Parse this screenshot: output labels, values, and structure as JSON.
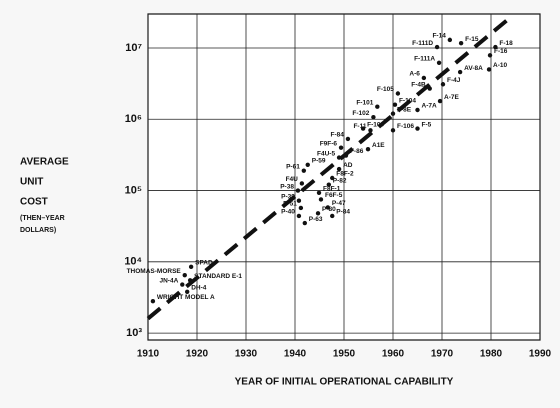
{
  "chart_data": {
    "type": "scatter",
    "log_y": true,
    "grid": true,
    "y_label_lines": [
      "AVERAGE",
      "UNIT",
      "COST",
      "(THEN–YEAR",
      "DOLLARS)"
    ],
    "x_label": "YEAR OF INITIAL OPERATIONAL CAPABILITY",
    "xlim": [
      1910,
      1990
    ],
    "xticks": [
      1910,
      1920,
      1930,
      1940,
      1950,
      1960,
      1970,
      1980,
      1990
    ],
    "ylim": [
      800,
      30000000
    ],
    "yticks": [
      {
        "value": 1000,
        "label": "10³"
      },
      {
        "value": 10000,
        "label": "10⁴"
      },
      {
        "value": 100000,
        "label": "10⁵"
      },
      {
        "value": 1000000,
        "label": "10⁶"
      },
      {
        "value": 10000000,
        "label": "10⁷"
      }
    ],
    "series": [
      {
        "color": "#111111",
        "labels": [
          "WRIGHT MODEL A",
          "DH-4",
          "JN-4A",
          "STANDARD E-1",
          "THOMAS-MORSE",
          "SPAD",
          "P-40",
          "P-63",
          "P-51",
          "P-39",
          "P-38",
          "F4U",
          "P-61",
          "P-59",
          "P-80",
          "P-84",
          "P-47",
          "F6F-5",
          "F8F-1",
          "P-82",
          "F8F-2",
          "AD",
          "F4U-5",
          "F9F-6",
          "F-86",
          "F-84",
          "A1E",
          "F-11",
          "F-100",
          "F-102",
          "F-101",
          "F-106",
          "F-8E",
          "F-104",
          "F-105",
          "F-5",
          "A-7A",
          "A-6",
          "F-4B",
          "A-7E",
          "F-4J",
          "F-111A",
          "F-111D",
          "F-14",
          "F-15",
          "AV-8A",
          "A-10",
          "F-16",
          "F-18"
        ],
        "x": [
          1911,
          1918,
          1917,
          1918.6,
          1917.5,
          1918.8,
          1940.8,
          1942,
          1941.2,
          1940.8,
          1940.6,
          1941.4,
          1941.8,
          1942.6,
          1944.7,
          1947.6,
          1946.7,
          1945.3,
          1944.9,
          1946.9,
          1947.6,
          1949,
          1949,
          1949.4,
          1950.4,
          1950.8,
          1954.9,
          1955.4,
          1953.9,
          1956,
          1956.8,
          1960,
          1960,
          1960.4,
          1961,
          1965,
          1965,
          1966.3,
          1967.5,
          1969.6,
          1970.2,
          1969.4,
          1969,
          1971.6,
          1973.9,
          1973.7,
          1979.6,
          1979.8,
          1980.9
        ],
        "values": [
          2800,
          3800,
          4800,
          5500,
          6500,
          8500,
          44000,
          35000,
          57000,
          72000,
          100000,
          126000,
          190000,
          230000,
          48000,
          44000,
          58000,
          75000,
          93000,
          121000,
          150000,
          200000,
          290000,
          400000,
          310000,
          530000,
          380000,
          700000,
          740000,
          1070000,
          1500000,
          700000,
          1200000,
          1600000,
          2300000,
          740000,
          1350000,
          3800000,
          2700000,
          1800000,
          3100000,
          6200000,
          10300000,
          13000000,
          11700000,
          4600000,
          5000000,
          7900000,
          10300000
        ]
      },
      {
        "type": "line",
        "dashed": true,
        "color": "#111111",
        "x": [
          1910,
          1984
        ],
        "values": [
          1600,
          27000000
        ]
      }
    ]
  }
}
